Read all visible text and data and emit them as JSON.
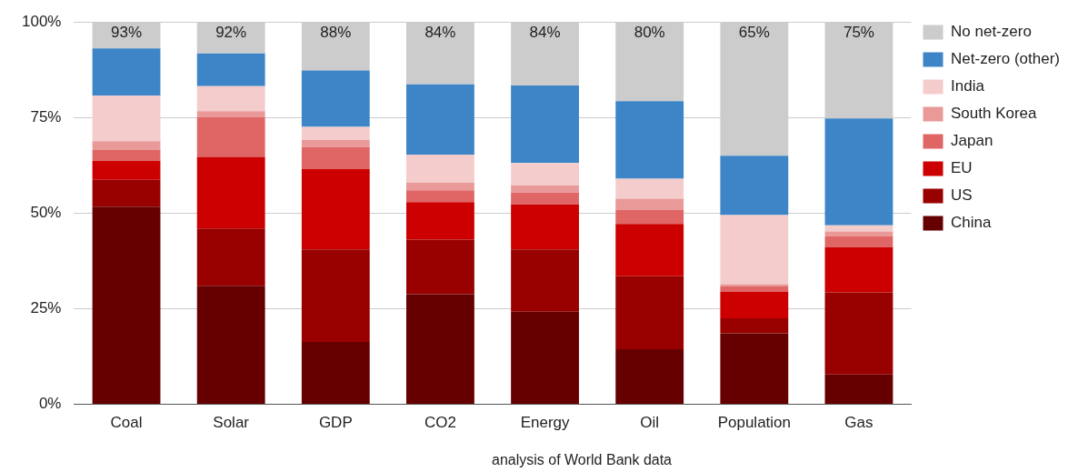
{
  "chart_data": {
    "type": "bar",
    "stacked": true,
    "categories": [
      "Coal",
      "Solar",
      "GDP",
      "CO2",
      "Energy",
      "Oil",
      "Population",
      "Gas"
    ],
    "series": [
      {
        "name": "China",
        "color": "#660000",
        "values": [
          51.7,
          31.0,
          16.3,
          28.8,
          24.2,
          14.4,
          18.6,
          7.8
        ]
      },
      {
        "name": "US",
        "color": "#990000",
        "values": [
          7.0,
          15.0,
          24.2,
          14.3,
          16.3,
          19.1,
          3.9,
          21.5
        ]
      },
      {
        "name": "EU",
        "color": "#cc0000",
        "values": [
          5.0,
          18.7,
          21.0,
          9.8,
          11.8,
          13.7,
          6.9,
          11.8
        ]
      },
      {
        "name": "Japan",
        "color": "#e06666",
        "values": [
          2.8,
          10.5,
          5.8,
          3.1,
          3.1,
          3.7,
          1.4,
          2.8
        ]
      },
      {
        "name": "South Korea",
        "color": "#ea9999",
        "values": [
          2.3,
          1.5,
          1.9,
          2.0,
          1.9,
          2.9,
          0.6,
          1.3
        ]
      },
      {
        "name": "India",
        "color": "#f4cccc",
        "values": [
          11.9,
          6.5,
          3.4,
          7.3,
          5.8,
          5.2,
          18.1,
          1.6
        ]
      },
      {
        "name": "Net-zero (other)",
        "color": "#3d85c6",
        "values": [
          12.4,
          8.6,
          14.7,
          18.4,
          20.3,
          20.3,
          15.5,
          28.0
        ]
      },
      {
        "name": "No net-zero",
        "color": "#cccccc",
        "values": [
          6.9,
          8.2,
          12.7,
          16.3,
          16.6,
          20.7,
          35.0,
          25.2
        ]
      }
    ],
    "ylim": [
      0,
      100
    ],
    "yticks": [
      {
        "value": 0,
        "label": "0%"
      },
      {
        "value": 25,
        "label": "25%"
      },
      {
        "value": 50,
        "label": "50%"
      },
      {
        "value": 75,
        "label": "75%"
      },
      {
        "value": 100,
        "label": "100%"
      }
    ],
    "grid": "y",
    "legend": "right",
    "annotations": [
      {
        "text": "93%",
        "x": "Coal",
        "y": 100
      },
      {
        "text": "92%",
        "x": "Solar",
        "y": 100
      },
      {
        "text": "88%",
        "x": "GDP",
        "y": 100
      },
      {
        "text": "84%",
        "x": "CO2",
        "y": 100
      },
      {
        "text": "84%",
        "x": "Energy",
        "y": 100
      },
      {
        "text": "80%",
        "x": "Oil",
        "y": 100
      },
      {
        "text": "65%",
        "x": "Population",
        "y": 100
      },
      {
        "text": "75%",
        "x": "Gas",
        "y": 100
      },
      "analysis of World Bank data"
    ]
  }
}
